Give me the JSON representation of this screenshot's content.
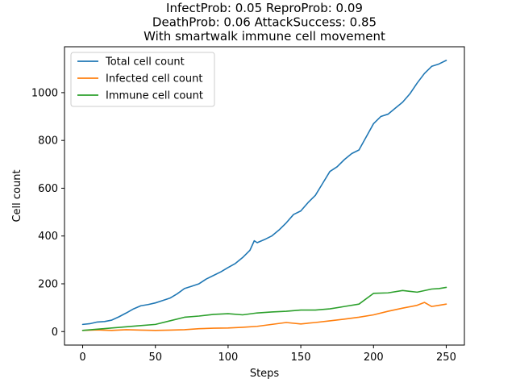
{
  "chart_data": {
    "type": "line",
    "title_lines": [
      "InfectProb: 0.05 ReproProb: 0.09",
      "DeathProb: 0.06 AttackSuccess: 0.85",
      "With smartwalk immune cell movement"
    ],
    "xlabel": "Steps",
    "ylabel": "Cell count",
    "xlim": [
      -12.5,
      262.5
    ],
    "ylim": [
      -56.5,
      1192
    ],
    "xticks": [
      0,
      50,
      100,
      150,
      200,
      250
    ],
    "yticks": [
      0,
      200,
      400,
      600,
      800,
      1000
    ],
    "legend_position": "upper left",
    "series": [
      {
        "name": "Total cell count",
        "color": "#1f77b4",
        "points": [
          [
            0,
            30
          ],
          [
            5,
            33
          ],
          [
            10,
            40
          ],
          [
            15,
            42
          ],
          [
            20,
            48
          ],
          [
            25,
            62
          ],
          [
            30,
            78
          ],
          [
            35,
            95
          ],
          [
            40,
            108
          ],
          [
            45,
            113
          ],
          [
            50,
            120
          ],
          [
            55,
            130
          ],
          [
            60,
            140
          ],
          [
            65,
            158
          ],
          [
            70,
            180
          ],
          [
            75,
            190
          ],
          [
            80,
            200
          ],
          [
            85,
            220
          ],
          [
            90,
            235
          ],
          [
            95,
            250
          ],
          [
            100,
            268
          ],
          [
            105,
            285
          ],
          [
            110,
            310
          ],
          [
            115,
            340
          ],
          [
            118,
            380
          ],
          [
            120,
            372
          ],
          [
            125,
            385
          ],
          [
            130,
            400
          ],
          [
            135,
            425
          ],
          [
            140,
            455
          ],
          [
            145,
            490
          ],
          [
            150,
            505
          ],
          [
            155,
            540
          ],
          [
            160,
            570
          ],
          [
            165,
            620
          ],
          [
            170,
            670
          ],
          [
            175,
            690
          ],
          [
            180,
            720
          ],
          [
            185,
            745
          ],
          [
            190,
            760
          ],
          [
            195,
            815
          ],
          [
            200,
            870
          ],
          [
            205,
            900
          ],
          [
            210,
            910
          ],
          [
            215,
            935
          ],
          [
            220,
            960
          ],
          [
            225,
            995
          ],
          [
            230,
            1040
          ],
          [
            235,
            1080
          ],
          [
            240,
            1110
          ],
          [
            245,
            1120
          ],
          [
            250,
            1135
          ]
        ]
      },
      {
        "name": "Infected cell count",
        "color": "#ff7f0e",
        "points": [
          [
            0,
            5
          ],
          [
            10,
            7
          ],
          [
            20,
            5
          ],
          [
            30,
            8
          ],
          [
            40,
            6
          ],
          [
            50,
            5
          ],
          [
            60,
            6
          ],
          [
            70,
            8
          ],
          [
            80,
            12
          ],
          [
            90,
            14
          ],
          [
            100,
            15
          ],
          [
            110,
            18
          ],
          [
            120,
            22
          ],
          [
            130,
            30
          ],
          [
            140,
            38
          ],
          [
            150,
            32
          ],
          [
            160,
            38
          ],
          [
            170,
            45
          ],
          [
            180,
            52
          ],
          [
            190,
            60
          ],
          [
            200,
            70
          ],
          [
            210,
            85
          ],
          [
            220,
            98
          ],
          [
            230,
            110
          ],
          [
            235,
            122
          ],
          [
            240,
            105
          ],
          [
            245,
            110
          ],
          [
            250,
            115
          ]
        ]
      },
      {
        "name": "Immune cell count",
        "color": "#2ca02c",
        "points": [
          [
            0,
            5
          ],
          [
            10,
            10
          ],
          [
            20,
            15
          ],
          [
            30,
            20
          ],
          [
            40,
            25
          ],
          [
            50,
            30
          ],
          [
            60,
            45
          ],
          [
            70,
            60
          ],
          [
            80,
            65
          ],
          [
            90,
            72
          ],
          [
            100,
            75
          ],
          [
            110,
            70
          ],
          [
            120,
            78
          ],
          [
            130,
            82
          ],
          [
            140,
            85
          ],
          [
            150,
            90
          ],
          [
            160,
            90
          ],
          [
            170,
            95
          ],
          [
            180,
            105
          ],
          [
            190,
            115
          ],
          [
            200,
            160
          ],
          [
            210,
            162
          ],
          [
            220,
            172
          ],
          [
            230,
            165
          ],
          [
            240,
            178
          ],
          [
            245,
            180
          ],
          [
            250,
            185
          ]
        ]
      }
    ]
  }
}
